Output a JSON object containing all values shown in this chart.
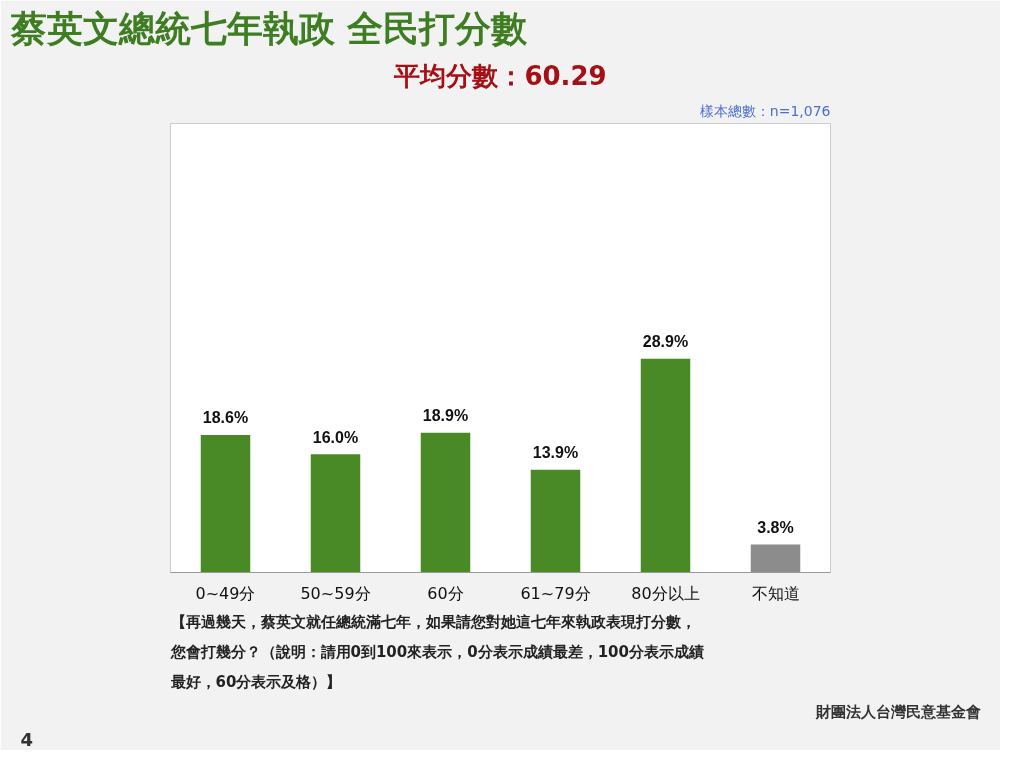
{
  "chart_data": {
    "type": "bar",
    "title": "蔡英文總統七年執政 全民打分數",
    "subtitle": "平均分數：60.29",
    "annotations": [
      "樣本總數：n=1,076",
      "【再過幾天，蔡英文就任總統滿七年，如果請您對她這七年來執政表現打分數，",
      "您會打幾分？（說明：請用0到100來表示，0分表示成績最差，100分表示成績",
      "最好，60分表示及格）】",
      "4",
      "財團法人台灣民意基金會"
    ],
    "categories": [
      "0~49分",
      "50~59分",
      "60分",
      "61~79分",
      "80分以上",
      "不知道"
    ],
    "values": [
      18.6,
      16.0,
      18.9,
      13.9,
      28.9,
      3.8
    ],
    "value_labels": [
      "18.6%",
      "16.0%",
      "18.9%",
      "13.9%",
      "28.9%",
      "3.8%"
    ],
    "colors": [
      "#4a8a26",
      "#4a8a26",
      "#4a8a26",
      "#4a8a26",
      "#4a8a26",
      "#8c8c8c"
    ],
    "tick_labels": "x"
  }
}
